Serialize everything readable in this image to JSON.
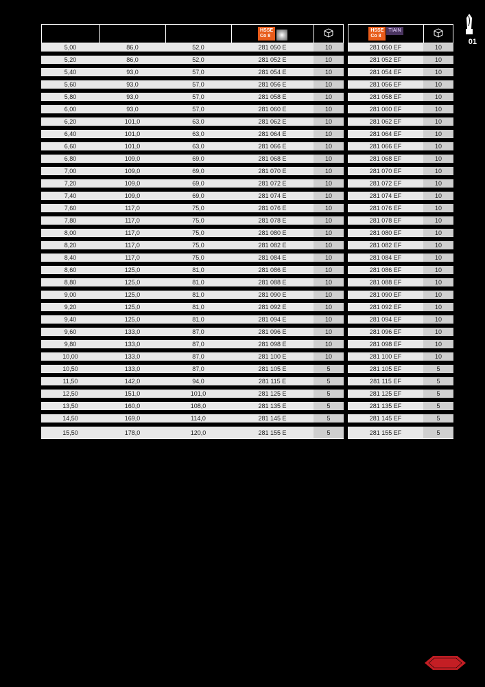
{
  "page_marker": "01",
  "header": {
    "left_badge_line1": "HSSE",
    "left_badge_line2": "Co 8",
    "right_badge_line1": "HSSE",
    "right_badge_line2": "Co 8",
    "right_badge_extra": "TIAIN"
  },
  "columns_left": [
    "",
    "",
    "",
    "",
    ""
  ],
  "columns_right": [
    "",
    ""
  ],
  "rows": [
    {
      "d": "5,00",
      "l1": "86,0",
      "l2": "52,0",
      "codeE": "281 050 E",
      "qE": "10",
      "codeEF": "281 050 EF",
      "qEF": "10"
    },
    {
      "d": "5,20",
      "l1": "86,0",
      "l2": "52,0",
      "codeE": "281 052 E",
      "qE": "10",
      "codeEF": "281 052 EF",
      "qEF": "10"
    },
    {
      "d": "5,40",
      "l1": "93,0",
      "l2": "57,0",
      "codeE": "281 054 E",
      "qE": "10",
      "codeEF": "281 054 EF",
      "qEF": "10"
    },
    {
      "d": "5,60",
      "l1": "93,0",
      "l2": "57,0",
      "codeE": "281 056 E",
      "qE": "10",
      "codeEF": "281 056 EF",
      "qEF": "10"
    },
    {
      "d": "5,80",
      "l1": "93,0",
      "l2": "57,0",
      "codeE": "281 058 E",
      "qE": "10",
      "codeEF": "281 058 EF",
      "qEF": "10"
    },
    {
      "d": "6,00",
      "l1": "93,0",
      "l2": "57,0",
      "codeE": "281 060 E",
      "qE": "10",
      "codeEF": "281 060 EF",
      "qEF": "10"
    },
    {
      "d": "6,20",
      "l1": "101,0",
      "l2": "63,0",
      "codeE": "281 062 E",
      "qE": "10",
      "codeEF": "281 062 EF",
      "qEF": "10"
    },
    {
      "d": "6,40",
      "l1": "101,0",
      "l2": "63,0",
      "codeE": "281 064 E",
      "qE": "10",
      "codeEF": "281 064 EF",
      "qEF": "10"
    },
    {
      "d": "6,60",
      "l1": "101,0",
      "l2": "63,0",
      "codeE": "281 066 E",
      "qE": "10",
      "codeEF": "281 066 EF",
      "qEF": "10"
    },
    {
      "d": "6,80",
      "l1": "109,0",
      "l2": "69,0",
      "codeE": "281 068 E",
      "qE": "10",
      "codeEF": "281 068 EF",
      "qEF": "10"
    },
    {
      "d": "7,00",
      "l1": "109,0",
      "l2": "69,0",
      "codeE": "281 070 E",
      "qE": "10",
      "codeEF": "281 070 EF",
      "qEF": "10"
    },
    {
      "d": "7,20",
      "l1": "109,0",
      "l2": "69,0",
      "codeE": "281 072 E",
      "qE": "10",
      "codeEF": "281 072 EF",
      "qEF": "10"
    },
    {
      "d": "7,40",
      "l1": "109,0",
      "l2": "69,0",
      "codeE": "281 074 E",
      "qE": "10",
      "codeEF": "281 074 EF",
      "qEF": "10"
    },
    {
      "d": "7,60",
      "l1": "117,0",
      "l2": "75,0",
      "codeE": "281 076 E",
      "qE": "10",
      "codeEF": "281 076 EF",
      "qEF": "10"
    },
    {
      "d": "7,80",
      "l1": "117,0",
      "l2": "75,0",
      "codeE": "281 078 E",
      "qE": "10",
      "codeEF": "281 078 EF",
      "qEF": "10"
    },
    {
      "d": "8,00",
      "l1": "117,0",
      "l2": "75,0",
      "codeE": "281 080 E",
      "qE": "10",
      "codeEF": "281 080 EF",
      "qEF": "10"
    },
    {
      "d": "8,20",
      "l1": "117,0",
      "l2": "75,0",
      "codeE": "281 082 E",
      "qE": "10",
      "codeEF": "281 082 EF",
      "qEF": "10"
    },
    {
      "d": "8,40",
      "l1": "117,0",
      "l2": "75,0",
      "codeE": "281 084 E",
      "qE": "10",
      "codeEF": "281 084 EF",
      "qEF": "10"
    },
    {
      "d": "8,60",
      "l1": "125,0",
      "l2": "81,0",
      "codeE": "281 086 E",
      "qE": "10",
      "codeEF": "281 086 EF",
      "qEF": "10"
    },
    {
      "d": "8,80",
      "l1": "125,0",
      "l2": "81,0",
      "codeE": "281 088 E",
      "qE": "10",
      "codeEF": "281 088 EF",
      "qEF": "10"
    },
    {
      "d": "9,00",
      "l1": "125,0",
      "l2": "81,0",
      "codeE": "281 090 E",
      "qE": "10",
      "codeEF": "281 090 EF",
      "qEF": "10"
    },
    {
      "d": "9,20",
      "l1": "125,0",
      "l2": "81,0",
      "codeE": "281 092 E",
      "qE": "10",
      "codeEF": "281 092 EF",
      "qEF": "10"
    },
    {
      "d": "9,40",
      "l1": "125,0",
      "l2": "81,0",
      "codeE": "281 094 E",
      "qE": "10",
      "codeEF": "281 094 EF",
      "qEF": "10"
    },
    {
      "d": "9,60",
      "l1": "133,0",
      "l2": "87,0",
      "codeE": "281 096 E",
      "qE": "10",
      "codeEF": "281 096 EF",
      "qEF": "10"
    },
    {
      "d": "9,80",
      "l1": "133,0",
      "l2": "87,0",
      "codeE": "281 098 E",
      "qE": "10",
      "codeEF": "281 098 EF",
      "qEF": "10"
    },
    {
      "d": "10,00",
      "l1": "133,0",
      "l2": "87,0",
      "codeE": "281 100 E",
      "qE": "10",
      "codeEF": "281 100 EF",
      "qEF": "10"
    },
    {
      "d": "10,50",
      "l1": "133,0",
      "l2": "87,0",
      "codeE": "281 105 E",
      "qE": "5",
      "codeEF": "281 105 EF",
      "qEF": "5"
    },
    {
      "d": "11,50",
      "l1": "142,0",
      "l2": "94,0",
      "codeE": "281 115 E",
      "qE": "5",
      "codeEF": "281 115 EF",
      "qEF": "5"
    },
    {
      "d": "12,50",
      "l1": "151,0",
      "l2": "101,0",
      "codeE": "281 125 E",
      "qE": "5",
      "codeEF": "281 125 EF",
      "qEF": "5"
    },
    {
      "d": "13,50",
      "l1": "160,0",
      "l2": "108,0",
      "codeE": "281 135 E",
      "qE": "5",
      "codeEF": "281 135 EF",
      "qEF": "5"
    },
    {
      "d": "14,50",
      "l1": "169,0",
      "l2": "114,0",
      "codeE": "281 145 E",
      "qE": "5",
      "codeEF": "281 145 EF",
      "qEF": "5"
    },
    {
      "d": "15,50",
      "l1": "178,0",
      "l2": "120,0",
      "codeE": "281 155 E",
      "qE": "5",
      "codeEF": "281 155 EF",
      "qEF": "5"
    }
  ],
  "style": {
    "row_bg": "#e8e8e8",
    "qty_bg": "#cfcfcf",
    "row_gap_color": "#000000",
    "border_color": "#ffffff",
    "font_size_pt": 9,
    "badge_bg": "#e85c1b",
    "badge_extra_bg": "#4a3560",
    "logo_color": "#c41e24"
  }
}
